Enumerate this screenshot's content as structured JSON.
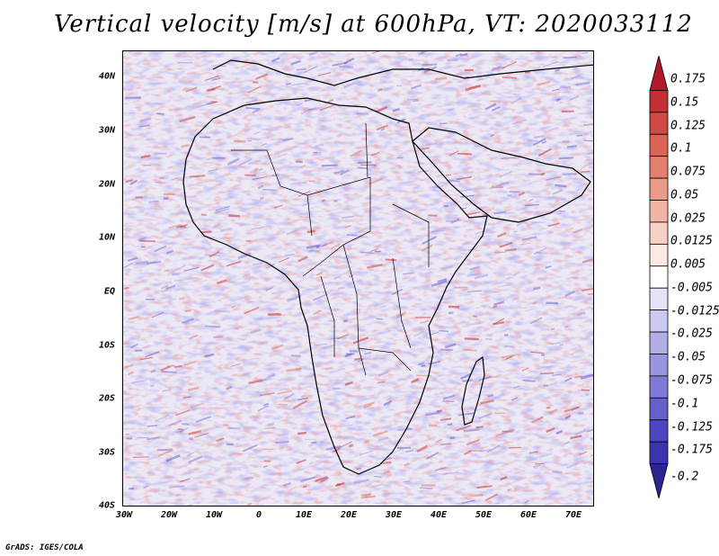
{
  "title": "Vertical velocity [m/s] at 600hPa, VT: 2020033112",
  "credit": "GrADS: IGES/COLA",
  "latitude_labels": [
    "40N",
    "30N",
    "20N",
    "10N",
    "EQ",
    "10S",
    "20S",
    "30S",
    "40S"
  ],
  "longitude_labels": [
    "30W",
    "20W",
    "10W",
    "0",
    "10E",
    "20E",
    "30E",
    "40E",
    "50E",
    "60E",
    "70E"
  ],
  "colorbar": {
    "labels": [
      "0.175",
      "0.15",
      "0.125",
      "0.1",
      "0.075",
      "0.05",
      "0.025",
      "0.0125",
      "0.005",
      "-0.005",
      "-0.0125",
      "-0.025",
      "-0.05",
      "-0.075",
      "-0.1",
      "-0.125",
      "-0.175",
      "-0.2"
    ],
    "colors": [
      "#b2182b",
      "#c23034",
      "#d04a45",
      "#dc6457",
      "#e47f6e",
      "#ec9a88",
      "#f2b5a5",
      "#f7d0c6",
      "#fbe9e4",
      "#ffffff",
      "#e5e3f5",
      "#ccc9ee",
      "#b3aee6",
      "#9a94de",
      "#8079d5",
      "#6660cc",
      "#4c46c0",
      "#3a34b0",
      "#2c2590"
    ]
  },
  "legend_colors": {
    "background": "#e8e6f4",
    "coastline": "#000000"
  }
}
